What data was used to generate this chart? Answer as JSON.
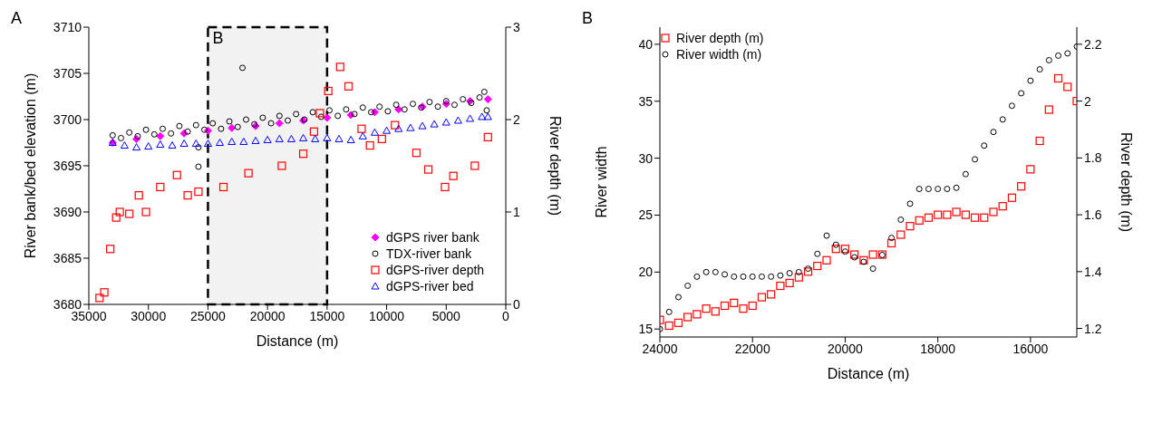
{
  "chart_data": [
    {
      "type": "scatter",
      "xlabel": "Distance (m)",
      "ylabel": "River bank/bed elevation (m)",
      "y2label": "River depth (m)",
      "annotations": [
        "A"
      ],
      "xlim": [
        35000,
        0
      ],
      "xticks": [
        35000,
        30000,
        25000,
        20000,
        15000,
        10000,
        5000,
        0
      ],
      "ylim": [
        3680,
        3710
      ],
      "yticks": [
        3680,
        3685,
        3690,
        3695,
        3700,
        3705,
        3710
      ],
      "y2lim": [
        0,
        3
      ],
      "y2ticks": [
        0,
        1,
        2,
        3
      ],
      "grid": false,
      "legend": "bottom right",
      "bands": [
        {
          "axis": "x",
          "from": 25000,
          "to": 15000,
          "label": "B",
          "color": "#000000"
        }
      ],
      "series": [
        {
          "name": "dGPS river bank",
          "color": "#ff00ff",
          "marker": "diamond",
          "x": [
            33000,
            31000,
            29000,
            27000,
            25000,
            23000,
            21000,
            19000,
            17000,
            15000,
            13000,
            11000,
            9000,
            7000,
            5000,
            3000,
            1500
          ],
          "values": [
            3697.5,
            3697.9,
            3698.2,
            3698.5,
            3698.8,
            3699.1,
            3699.3,
            3699.6,
            3699.9,
            3700.2,
            3700.5,
            3700.8,
            3701.1,
            3701.4,
            3701.7,
            3702.0,
            3702.2
          ]
        },
        {
          "name": "TDX-river bank",
          "color": "#000000",
          "marker": "circle",
          "x": [
            33000,
            32300,
            31600,
            30900,
            30200,
            29500,
            28800,
            28100,
            27400,
            26700,
            26000,
            25800,
            25800,
            25300,
            24600,
            23900,
            23200,
            22500,
            22100,
            21800,
            21100,
            20400,
            19700,
            19000,
            18300,
            17600,
            16900,
            16200,
            15500,
            14800,
            14100,
            13400,
            12700,
            12000,
            11300,
            10600,
            9900,
            9200,
            8500,
            7800,
            7100,
            6400,
            5700,
            5000,
            4300,
            3600,
            2900,
            2200,
            1800,
            1600
          ],
          "values": [
            3698.3,
            3698.0,
            3698.6,
            3698.2,
            3698.9,
            3698.4,
            3699.0,
            3698.5,
            3699.3,
            3698.7,
            3699.4,
            3697.0,
            3694.9,
            3698.9,
            3699.6,
            3699.0,
            3699.8,
            3699.2,
            3705.6,
            3700.0,
            3699.5,
            3700.2,
            3699.6,
            3700.4,
            3699.9,
            3700.6,
            3700.0,
            3700.8,
            3700.3,
            3701.0,
            3700.4,
            3701.1,
            3700.6,
            3701.3,
            3700.8,
            3701.4,
            3700.9,
            3701.6,
            3701.1,
            3701.7,
            3701.3,
            3701.9,
            3701.4,
            3702.0,
            3701.6,
            3702.2,
            3701.8,
            3702.4,
            3703.0,
            3701.0
          ]
        },
        {
          "name": "dGPS-river depth",
          "color": "#ff0000",
          "marker": "square",
          "axis": "y2",
          "x": [
            34100,
            33700,
            33200,
            32700,
            32400,
            31600,
            30800,
            30200,
            29000,
            27600,
            26700,
            25800,
            23700,
            21600,
            18800,
            17000,
            16100,
            15600,
            14900,
            13900,
            13200,
            12100,
            11400,
            10400,
            9300,
            7500,
            6500,
            5100,
            4400,
            2600,
            1500
          ],
          "values": [
            0.07,
            0.13,
            0.6,
            0.94,
            1.0,
            0.98,
            1.18,
            1.0,
            1.27,
            1.4,
            1.18,
            1.22,
            1.27,
            1.42,
            1.5,
            1.63,
            1.87,
            2.07,
            2.31,
            2.57,
            2.36,
            1.9,
            1.72,
            1.79,
            1.94,
            1.64,
            1.46,
            1.27,
            1.39,
            1.5,
            1.81
          ]
        },
        {
          "name": "dGPS-river bed",
          "color": "#0000ff",
          "marker": "triangle",
          "x": [
            33000,
            32000,
            31000,
            30000,
            29000,
            28000,
            27000,
            26000,
            25000,
            24000,
            23000,
            22000,
            21000,
            20000,
            19000,
            18000,
            17000,
            16000,
            15000,
            14000,
            13000,
            12000,
            11000,
            10000,
            9000,
            8000,
            7000,
            6000,
            5000,
            4000,
            3000,
            2000,
            1500
          ],
          "values": [
            3697.5,
            3697.2,
            3697.0,
            3697.1,
            3697.3,
            3697.2,
            3697.4,
            3697.4,
            3697.4,
            3697.5,
            3697.6,
            3697.6,
            3697.7,
            3697.8,
            3697.9,
            3697.9,
            3698.0,
            3697.9,
            3698.0,
            3697.9,
            3697.8,
            3698.2,
            3698.6,
            3698.8,
            3699.0,
            3699.1,
            3699.3,
            3699.5,
            3699.7,
            3699.9,
            3700.1,
            3700.3,
            3700.3
          ]
        }
      ]
    },
    {
      "type": "scatter",
      "xlabel": "Distance (m)",
      "ylabel": "River width",
      "y2label": "River depth (m)",
      "annotations": [
        "B"
      ],
      "xlim": [
        24000,
        15000
      ],
      "xticks": [
        24000,
        22000,
        20000,
        18000,
        16000
      ],
      "ylim": [
        14.3,
        41.5
      ],
      "yticks": [
        15,
        20,
        25,
        30,
        35,
        40
      ],
      "y2lim": [
        1.17,
        2.26
      ],
      "y2ticks": [
        1.2,
        1.4,
        1.6,
        1.8,
        2.0,
        2.2
      ],
      "grid": false,
      "legend": "top left",
      "series": [
        {
          "name": "River depth (m)",
          "color": "#ff0000",
          "marker": "square",
          "axis": "y2",
          "x": [
            24000,
            23800,
            23600,
            23400,
            23200,
            23000,
            22800,
            22600,
            22400,
            22200,
            22000,
            21800,
            21600,
            21400,
            21200,
            21000,
            20800,
            20600,
            20400,
            20200,
            20000,
            19800,
            19600,
            19400,
            19200,
            19000,
            18800,
            18600,
            18400,
            18200,
            18000,
            17800,
            17600,
            17400,
            17200,
            17000,
            16800,
            16600,
            16400,
            16200,
            16000,
            15800,
            15600,
            15400,
            15200,
            15000
          ],
          "values": [
            1.23,
            1.21,
            1.22,
            1.24,
            1.25,
            1.27,
            1.26,
            1.28,
            1.29,
            1.27,
            1.28,
            1.31,
            1.32,
            1.35,
            1.36,
            1.38,
            1.4,
            1.42,
            1.44,
            1.48,
            1.48,
            1.46,
            1.44,
            1.46,
            1.46,
            1.5,
            1.53,
            1.56,
            1.58,
            1.59,
            1.6,
            1.6,
            1.61,
            1.6,
            1.59,
            1.59,
            1.61,
            1.63,
            1.66,
            1.7,
            1.76,
            1.86,
            1.97,
            2.08,
            2.05,
            2.0
          ]
        },
        {
          "name": "River width (m)",
          "color": "#000000",
          "marker": "circle",
          "x": [
            24000,
            23800,
            23600,
            23400,
            23200,
            23000,
            22800,
            22600,
            22400,
            22200,
            22000,
            21800,
            21600,
            21400,
            21200,
            21000,
            20800,
            20600,
            20400,
            20200,
            20000,
            19800,
            19600,
            19400,
            19200,
            19000,
            18800,
            18600,
            18400,
            18200,
            18000,
            17800,
            17600,
            17400,
            17200,
            17000,
            16800,
            16600,
            16400,
            16200,
            16000,
            15800,
            15600,
            15400,
            15200,
            15000
          ],
          "values": [
            15.0,
            16.5,
            17.8,
            18.8,
            19.6,
            20.0,
            20.0,
            19.8,
            19.6,
            19.6,
            19.6,
            19.6,
            19.6,
            19.7,
            19.9,
            20.0,
            20.3,
            21.6,
            23.2,
            22.4,
            21.8,
            21.3,
            20.9,
            20.3,
            21.5,
            23.0,
            24.6,
            26.0,
            27.3,
            27.3,
            27.3,
            27.3,
            27.4,
            28.6,
            29.9,
            31.1,
            32.3,
            33.4,
            34.6,
            35.7,
            36.8,
            37.8,
            38.6,
            39.0,
            39.2,
            39.8
          ]
        }
      ]
    }
  ]
}
